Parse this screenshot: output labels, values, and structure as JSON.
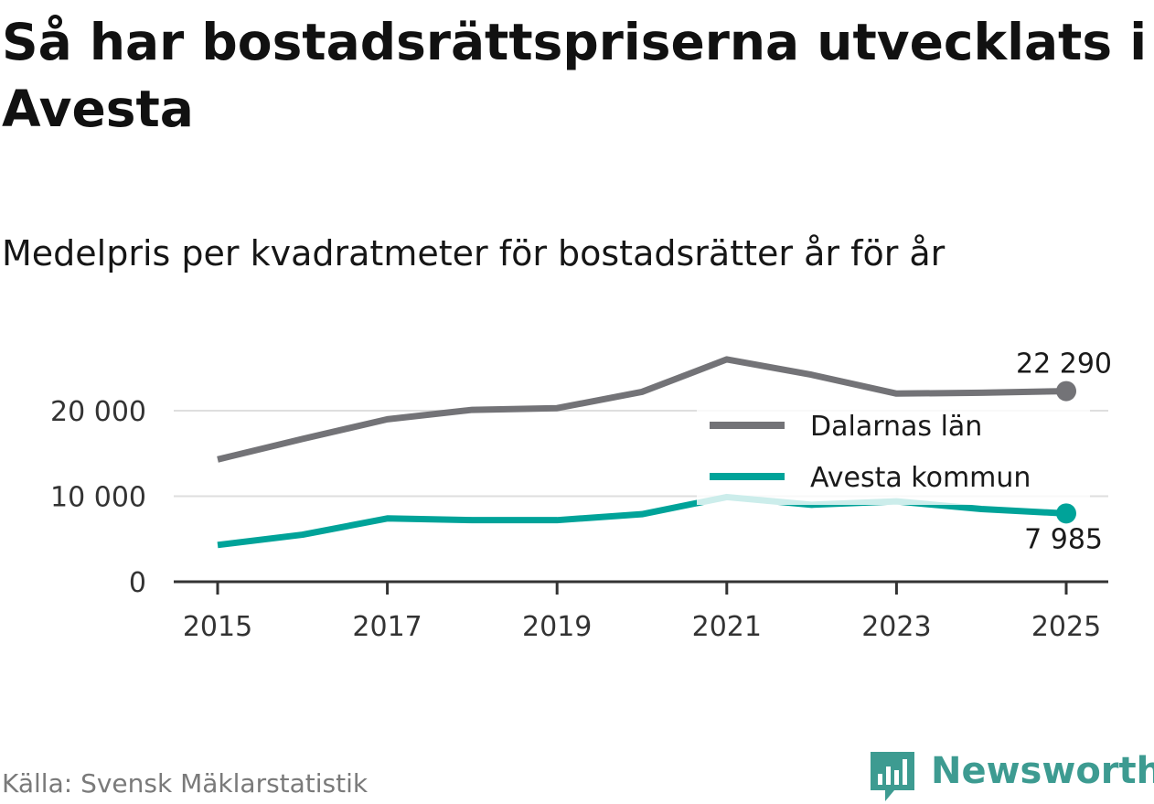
{
  "title": "Så har bostadsrättspriserna utvecklats i Avesta",
  "subtitle": "Medelpris per kvadratmeter för bostadsrätter år för år",
  "source": "Källa: Svensk Mäklarstatistik",
  "brand": {
    "name": "Newsworthy",
    "logo_icon": "bar-chart-badge-icon",
    "color": "#3d9b91"
  },
  "chart_data": {
    "type": "line",
    "title": "Så har bostadsrättspriserna utvecklats i Avesta",
    "subtitle": "Medelpris per kvadratmeter för bostadsrätter år för år",
    "x": [
      2015,
      2016,
      2017,
      2018,
      2019,
      2020,
      2021,
      2022,
      2023,
      2024,
      2025
    ],
    "x_tick_labels": [
      "2015",
      "2017",
      "2019",
      "2021",
      "2023",
      "2025"
    ],
    "y_ticks": [
      0,
      10000,
      20000
    ],
    "y_tick_labels": [
      "0",
      "10 000",
      "20 000"
    ],
    "ylim": [
      0,
      26000
    ],
    "grid": true,
    "legend_position": "center-right",
    "series": [
      {
        "name": "Dalarnas län",
        "color": "#737377",
        "values": [
          14300,
          16700,
          19000,
          20100,
          20300,
          22200,
          26000,
          24200,
          22000,
          22100,
          22290
        ],
        "end_label": "22 290"
      },
      {
        "name": "Avesta kommun",
        "color": "#00a399",
        "values": [
          4300,
          5500,
          7400,
          7200,
          7200,
          7900,
          9900,
          9000,
          9400,
          8500,
          7985
        ],
        "end_label": "7 985"
      }
    ]
  }
}
